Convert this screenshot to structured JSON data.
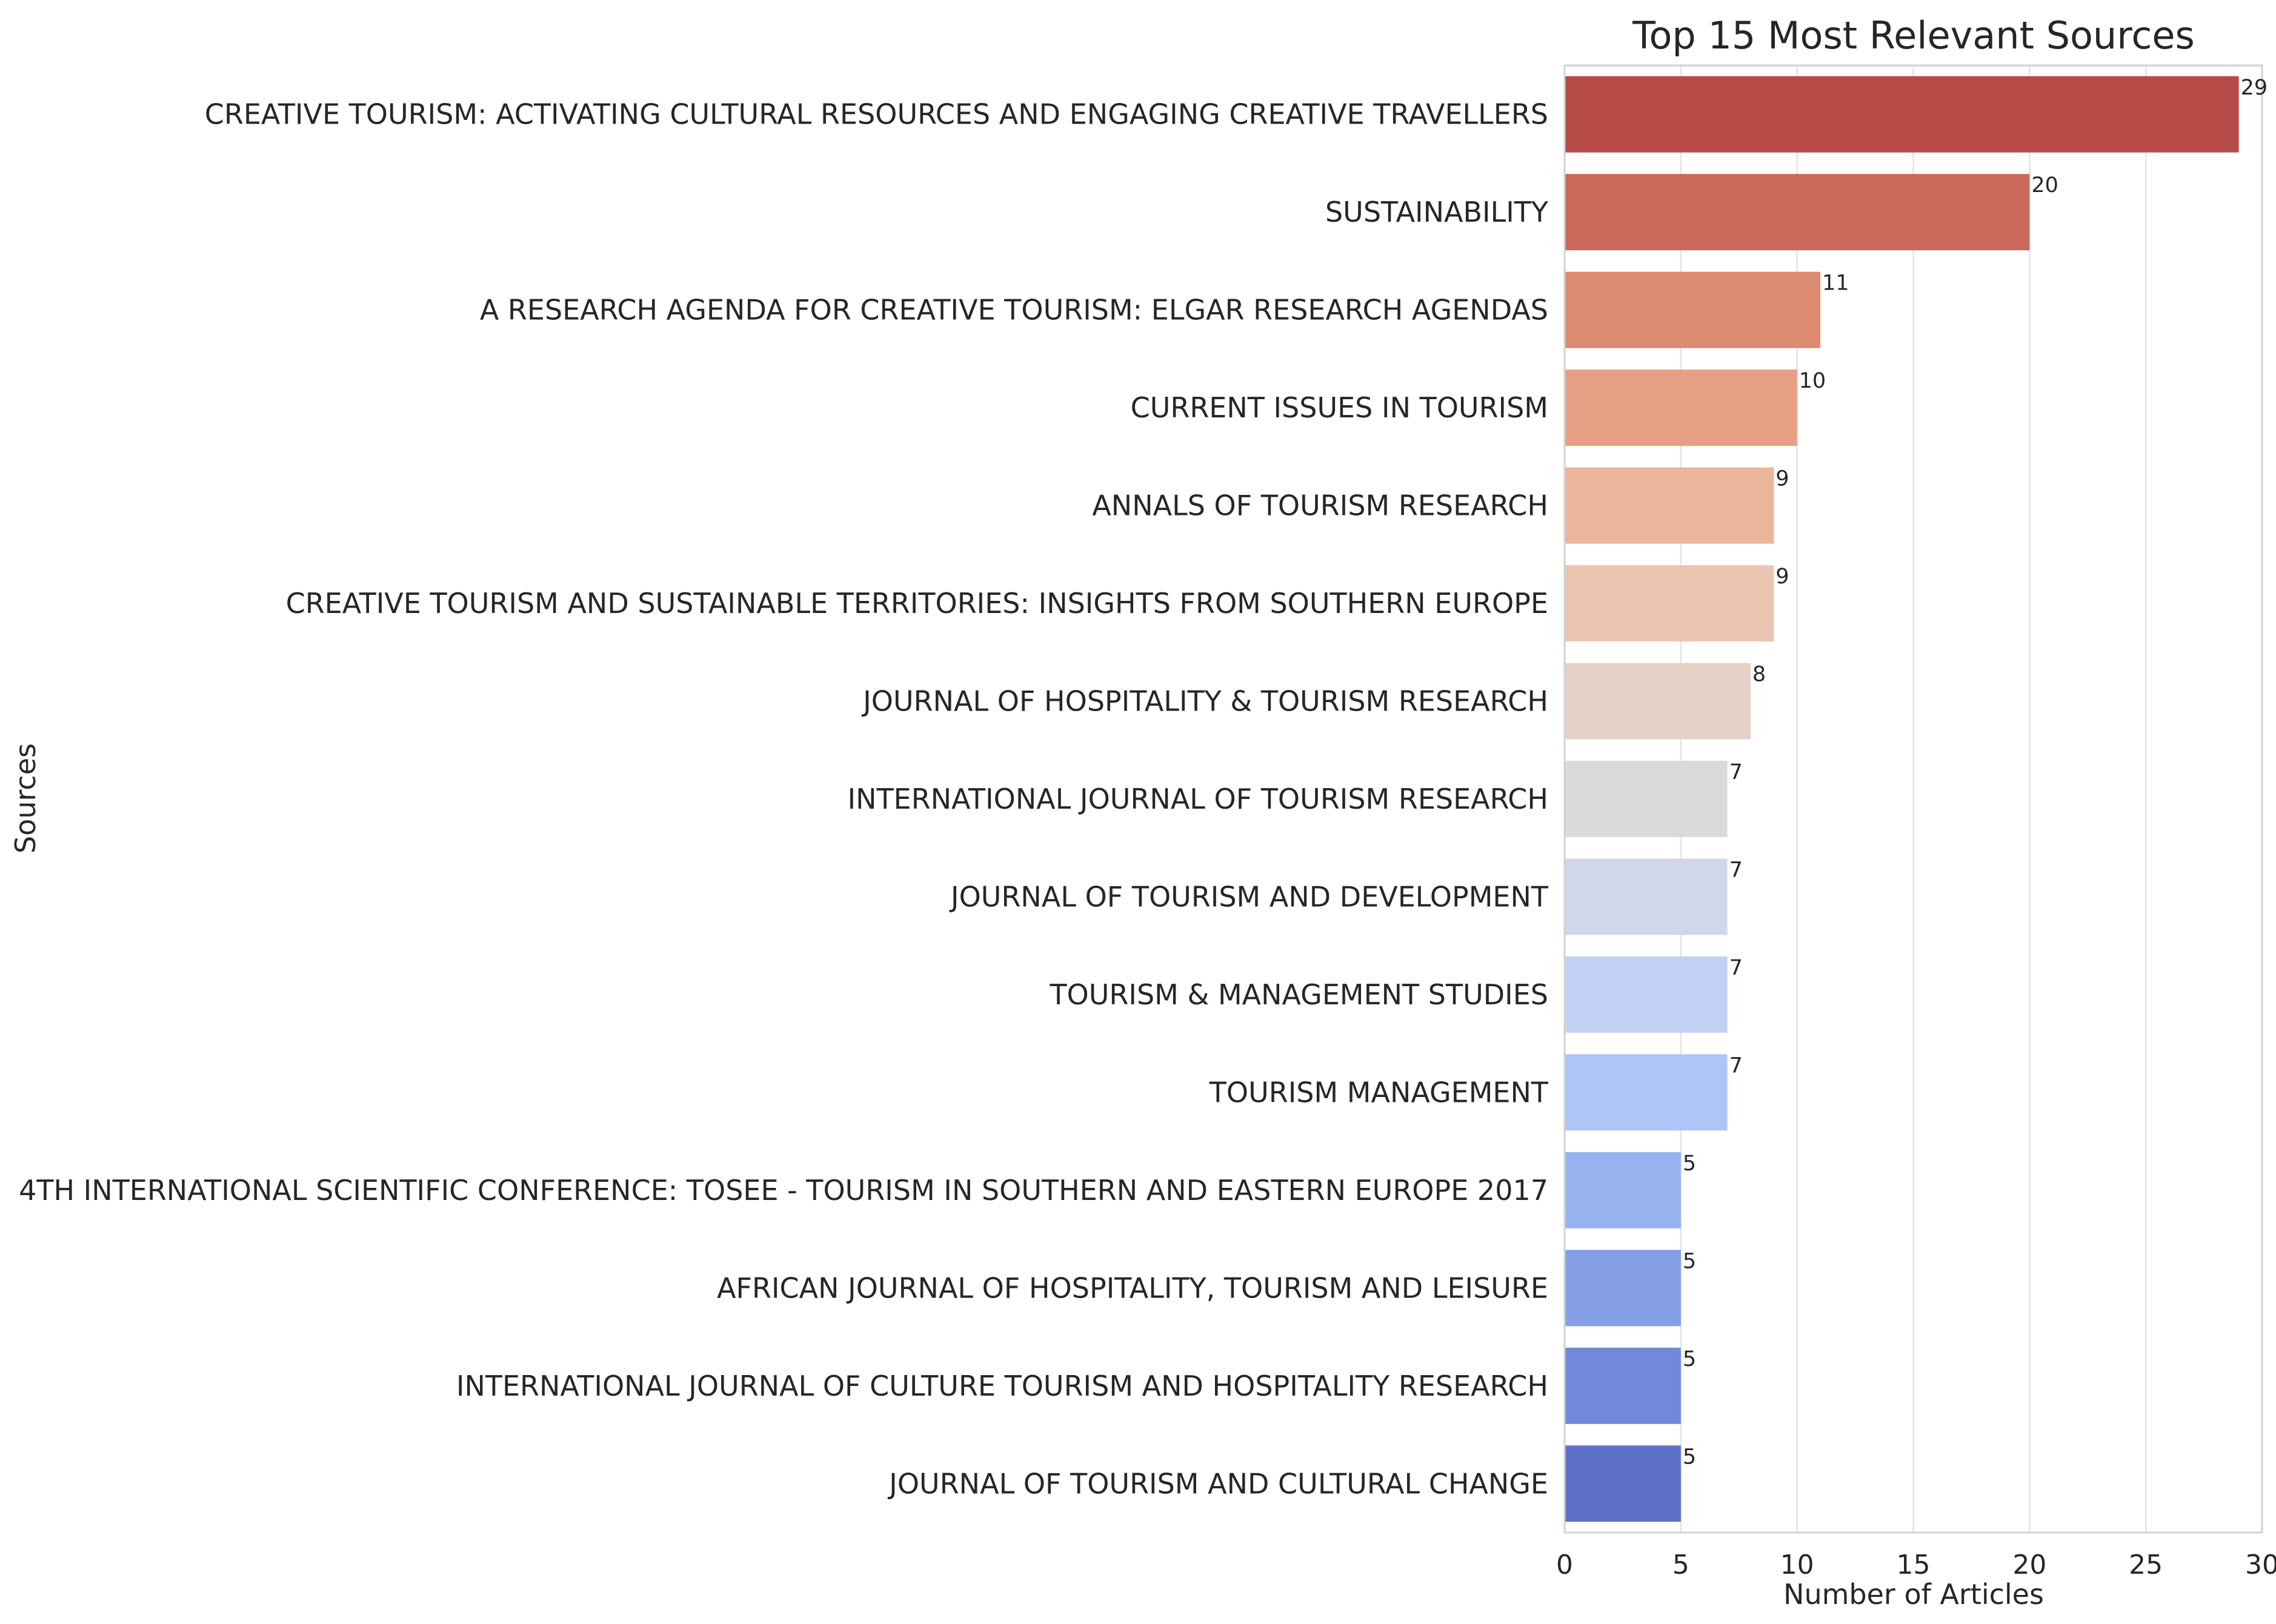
{
  "chart_data": {
    "type": "bar",
    "orientation": "horizontal",
    "title": "Top 15 Most Relevant Sources",
    "xlabel": "Number of Articles",
    "ylabel": "Sources",
    "xlim": [
      0,
      30
    ],
    "xticks": [
      0,
      5,
      10,
      15,
      20,
      25,
      30
    ],
    "grid": true,
    "categories": [
      "CREATIVE TOURISM: ACTIVATING CULTURAL RESOURCES AND ENGAGING CREATIVE TRAVELLERS",
      "SUSTAINABILITY",
      "A RESEARCH AGENDA FOR CREATIVE TOURISM: ELGAR RESEARCH AGENDAS",
      "CURRENT ISSUES IN TOURISM",
      "ANNALS OF TOURISM RESEARCH",
      "CREATIVE TOURISM AND SUSTAINABLE TERRITORIES: INSIGHTS FROM SOUTHERN EUROPE",
      "JOURNAL OF HOSPITALITY & TOURISM RESEARCH",
      "INTERNATIONAL JOURNAL OF TOURISM RESEARCH",
      "JOURNAL OF TOURISM AND DEVELOPMENT",
      "TOURISM & MANAGEMENT STUDIES",
      "TOURISM MANAGEMENT",
      "4TH INTERNATIONAL SCIENTIFIC CONFERENCE: TOSEE - TOURISM IN SOUTHERN AND EASTERN EUROPE 2017",
      "AFRICAN JOURNAL OF HOSPITALITY, TOURISM AND LEISURE",
      "INTERNATIONAL JOURNAL OF CULTURE TOURISM AND HOSPITALITY RESEARCH",
      "JOURNAL OF TOURISM AND CULTURAL CHANGE"
    ],
    "values": [
      29,
      20,
      11,
      10,
      9,
      9,
      8,
      7,
      7,
      7,
      7,
      5,
      5,
      5,
      5
    ],
    "value_labels": [
      "29",
      "20",
      "11",
      "10",
      "9",
      "9",
      "8",
      "7",
      "7",
      "7",
      "7",
      "5",
      "5",
      "5",
      "5"
    ],
    "colors": [
      "#b64a47",
      "#c9695c",
      "#dc8a70",
      "#e59f84",
      "#ebb59b",
      "#eac6b2",
      "#e3d1c6",
      "#dadada",
      "#cfd8e8",
      "#c2d1f3",
      "#aec5f5",
      "#98b2f0",
      "#849fe6",
      "#7089d9",
      "#5e70c8"
    ]
  }
}
